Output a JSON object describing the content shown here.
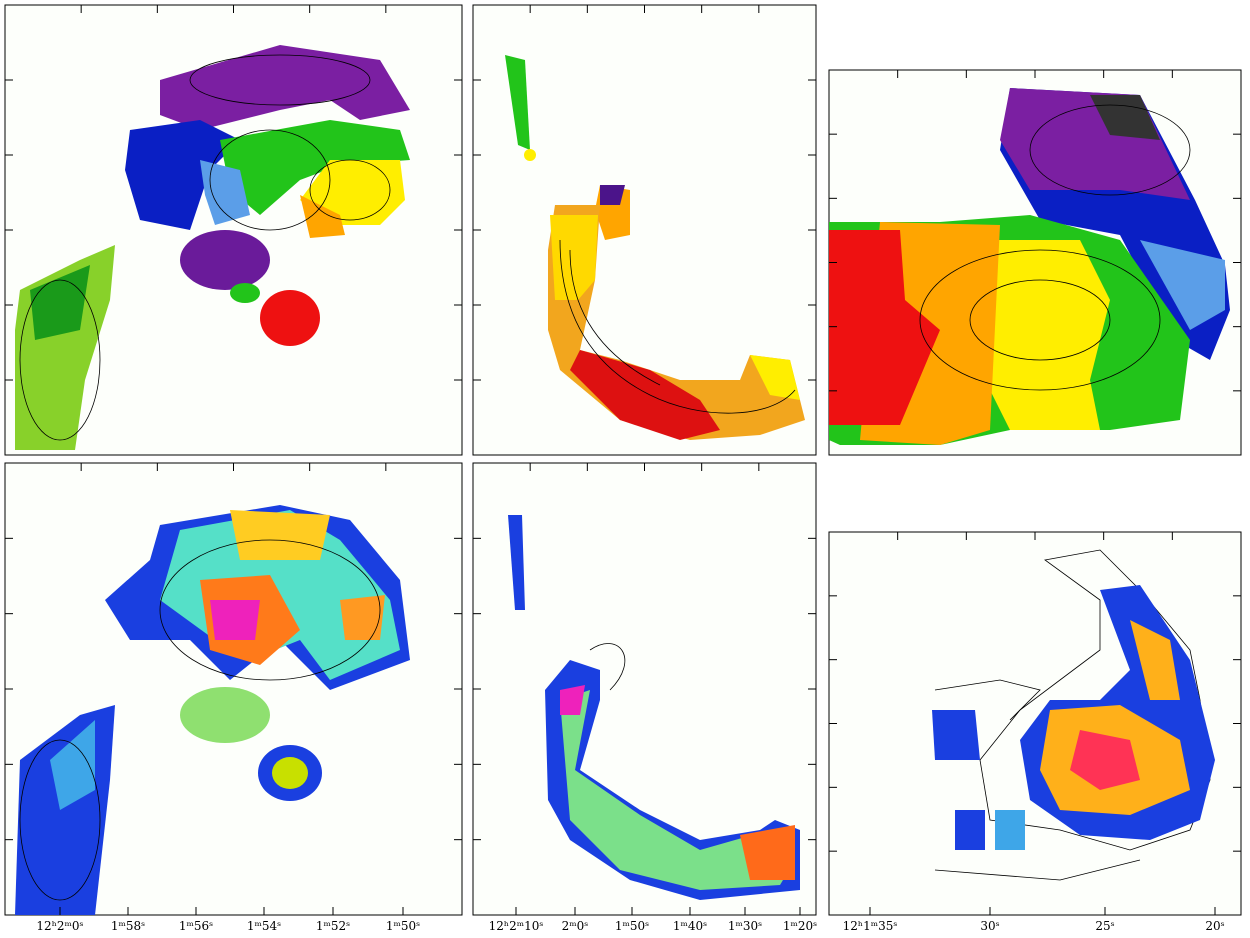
{
  "axis_labels": [
    [
      "12ʰ2ᵐ0ˢ",
      "1ᵐ58ˢ",
      "1ᵐ56ˢ",
      "1ᵐ54ˢ",
      "1ᵐ52ˢ",
      "1ᵐ50ˢ"
    ],
    [
      "12ʰ2ᵐ10ˢ",
      "2ᵐ0ˢ",
      "1ᵐ50ˢ",
      "1ᵐ40ˢ",
      "1ᵐ30ˢ",
      "1ᵐ20ˢ"
    ],
    [
      "12ʰ1ᵐ35ˢ",
      "30ˢ",
      "25ˢ",
      "20ˢ"
    ]
  ]
}
